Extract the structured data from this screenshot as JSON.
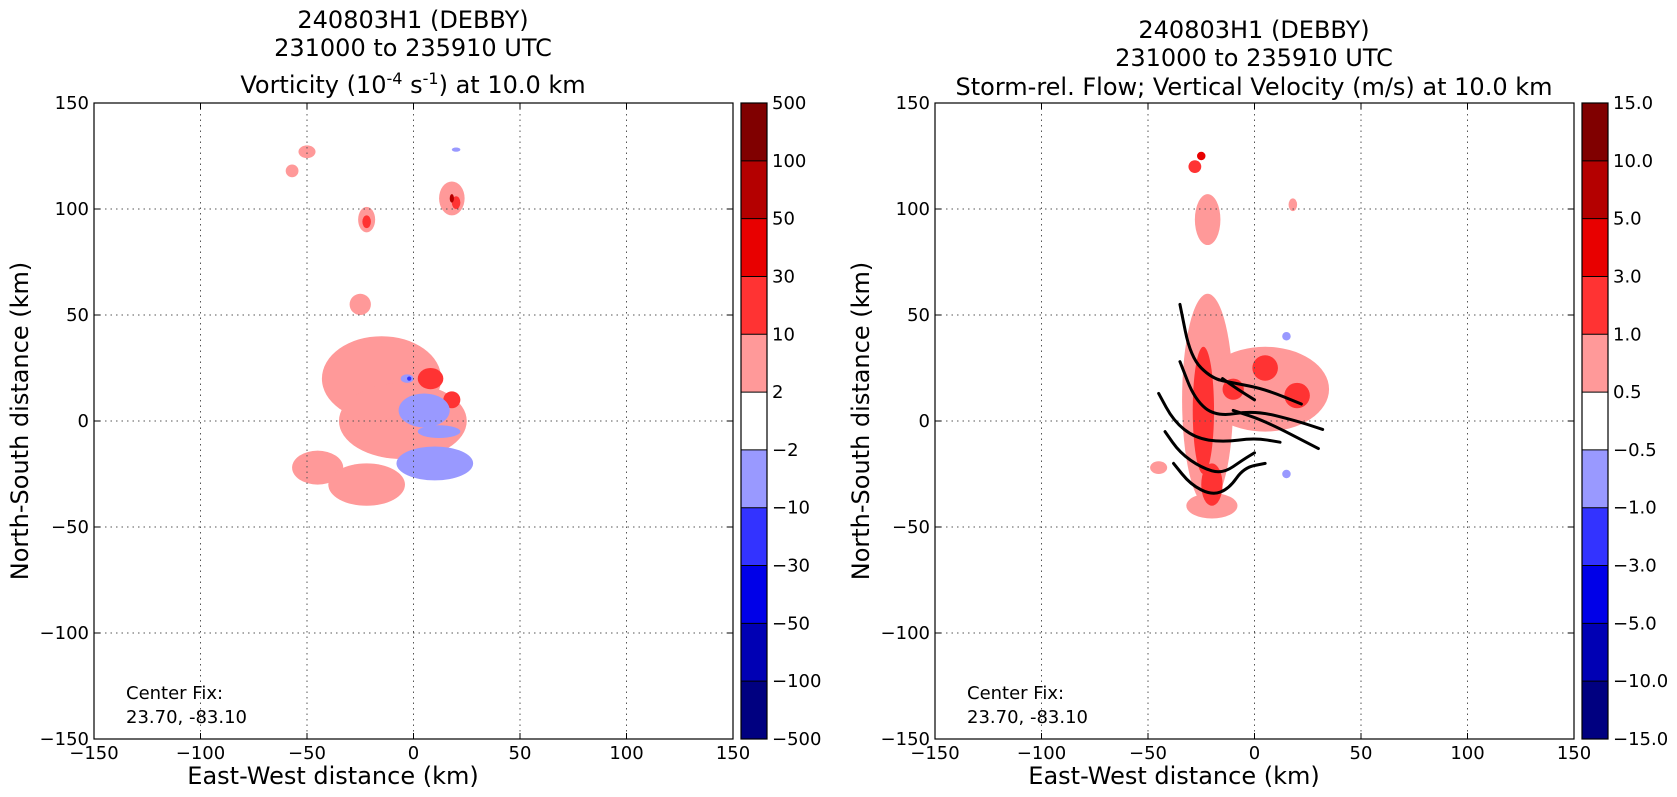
{
  "chart_data": [
    {
      "type": "heatmap",
      "title_lines": [
        "240803H1 (DEBBY)",
        "231000 to 235910 UTC"
      ],
      "title_var_parts": [
        "Vorticity (10",
        "-4",
        " s",
        "-1",
        ") at 10.0 km"
      ],
      "xlabel": "East-West distance (km)",
      "ylabel": "North-South distance (km)",
      "xlim": [
        -150,
        150
      ],
      "ylim": [
        -150,
        150
      ],
      "xticks": [
        -150,
        -100,
        -50,
        0,
        50,
        100,
        150
      ],
      "yticks": [
        -150,
        -100,
        -50,
        0,
        50,
        100,
        150
      ],
      "grid": true,
      "annotation": [
        "Center Fix:",
        "23.70, -83.10"
      ],
      "colorbar": {
        "labels": [
          "500",
          "100",
          "50",
          "30",
          "10",
          "2",
          "−2",
          "−10",
          "−30",
          "−50",
          "−100",
          "−500"
        ],
        "colors": [
          "#800000",
          "#b40000",
          "#e80000",
          "#ff3333",
          "#ff9999",
          "#ffffff",
          "#9999ff",
          "#3333ff",
          "#0000e8",
          "#0000b4",
          "#000080"
        ]
      },
      "blobs": [
        {
          "level": 1,
          "x": -15,
          "y": 20,
          "rx": 28,
          "ry": 20
        },
        {
          "level": 1,
          "x": -5,
          "y": 0,
          "rx": 30,
          "ry": 18
        },
        {
          "level": 1,
          "x": -45,
          "y": -22,
          "rx": 12,
          "ry": 8
        },
        {
          "level": 1,
          "x": -22,
          "y": -30,
          "rx": 18,
          "ry": 10
        },
        {
          "level": 1,
          "x": -25,
          "y": 55,
          "rx": 5,
          "ry": 5
        },
        {
          "level": 1,
          "x": -22,
          "y": 95,
          "rx": 4,
          "ry": 6
        },
        {
          "level": 1,
          "x": 18,
          "y": 105,
          "rx": 6,
          "ry": 8
        },
        {
          "level": 1,
          "x": -57,
          "y": 118,
          "rx": 3,
          "ry": 3
        },
        {
          "level": 1,
          "x": -50,
          "y": 127,
          "rx": 4,
          "ry": 3
        },
        {
          "level": 2,
          "x": 8,
          "y": 20,
          "rx": 6,
          "ry": 5
        },
        {
          "level": 2,
          "x": 18,
          "y": 10,
          "rx": 4,
          "ry": 4
        },
        {
          "level": 2,
          "x": 20,
          "y": 103,
          "rx": 2,
          "ry": 3
        },
        {
          "level": 2,
          "x": -22,
          "y": 94,
          "rx": 2,
          "ry": 3
        },
        {
          "level": 4,
          "x": 18,
          "y": 105,
          "rx": 1,
          "ry": 2
        },
        {
          "level": -1,
          "x": 5,
          "y": 5,
          "rx": 12,
          "ry": 8
        },
        {
          "level": -1,
          "x": 10,
          "y": -20,
          "rx": 18,
          "ry": 8
        },
        {
          "level": -1,
          "x": 12,
          "y": -5,
          "rx": 10,
          "ry": 3
        },
        {
          "level": -1,
          "x": -3,
          "y": 20,
          "rx": 3,
          "ry": 2
        },
        {
          "level": -1,
          "x": 20,
          "y": 128,
          "rx": 2,
          "ry": 1
        },
        {
          "level": -2,
          "x": -2,
          "y": 20,
          "rx": 1,
          "ry": 1
        }
      ]
    },
    {
      "type": "heatmap",
      "title_lines": [
        "240803H1 (DEBBY)",
        "231000 to 235910 UTC"
      ],
      "title_var_parts": [
        "Storm-rel. Flow; Vertical Velocity (m/s) at 10.0 km"
      ],
      "xlabel": "East-West distance (km)",
      "ylabel": "North-South distance (km)",
      "xlim": [
        -150,
        150
      ],
      "ylim": [
        -150,
        150
      ],
      "xticks": [
        -150,
        -100,
        -50,
        0,
        50,
        100,
        150
      ],
      "yticks": [
        -150,
        -100,
        -50,
        0,
        50,
        100,
        150
      ],
      "grid": true,
      "annotation": [
        "Center Fix:",
        "23.70, -83.10"
      ],
      "colorbar": {
        "labels": [
          "15.0",
          "10.0",
          "5.0",
          "3.0",
          "1.0",
          "0.5",
          "−0.5",
          "−1.0",
          "−3.0",
          "−5.0",
          "−10.0",
          "−15.0"
        ],
        "colors": [
          "#800000",
          "#b40000",
          "#e80000",
          "#ff3333",
          "#ff9999",
          "#ffffff",
          "#9999ff",
          "#3333ff",
          "#0000e8",
          "#0000b4",
          "#000080"
        ]
      },
      "blobs": [
        {
          "level": 1,
          "x": -22,
          "y": 10,
          "rx": 12,
          "ry": 50
        },
        {
          "level": 1,
          "x": 5,
          "y": 15,
          "rx": 30,
          "ry": 20
        },
        {
          "level": 1,
          "x": -20,
          "y": -40,
          "rx": 12,
          "ry": 6
        },
        {
          "level": 1,
          "x": -22,
          "y": 95,
          "rx": 6,
          "ry": 12
        },
        {
          "level": 1,
          "x": 18,
          "y": 102,
          "rx": 2,
          "ry": 3
        },
        {
          "level": 1,
          "x": -45,
          "y": -22,
          "rx": 4,
          "ry": 3
        },
        {
          "level": 1,
          "x": -5,
          "y": 15,
          "rx": 3,
          "ry": 3
        },
        {
          "level": 2,
          "x": -24,
          "y": 5,
          "rx": 5,
          "ry": 30
        },
        {
          "level": 2,
          "x": 5,
          "y": 25,
          "rx": 6,
          "ry": 6
        },
        {
          "level": 2,
          "x": 20,
          "y": 12,
          "rx": 6,
          "ry": 6
        },
        {
          "level": 2,
          "x": -10,
          "y": 15,
          "rx": 5,
          "ry": 5
        },
        {
          "level": 2,
          "x": -20,
          "y": -30,
          "rx": 5,
          "ry": 10
        },
        {
          "level": 2,
          "x": -28,
          "y": 120,
          "rx": 3,
          "ry": 3
        },
        {
          "level": 3,
          "x": -25,
          "y": 125,
          "rx": 2,
          "ry": 2
        },
        {
          "level": -1,
          "x": 15,
          "y": -25,
          "rx": 2,
          "ry": 2
        },
        {
          "level": -1,
          "x": 15,
          "y": 40,
          "rx": 2,
          "ry": 2
        }
      ],
      "streamlines": [
        [
          [
            -35,
            55
          ],
          [
            -30,
            30
          ],
          [
            -20,
            20
          ],
          [
            -10,
            18
          ],
          [
            5,
            15
          ],
          [
            22,
            8
          ]
        ],
        [
          [
            -35,
            28
          ],
          [
            -28,
            10
          ],
          [
            -18,
            2
          ],
          [
            0,
            5
          ],
          [
            20,
            0
          ],
          [
            32,
            -4
          ]
        ],
        [
          [
            -45,
            13
          ],
          [
            -38,
            0
          ],
          [
            -28,
            -8
          ],
          [
            -15,
            -10
          ],
          [
            0,
            -8
          ],
          [
            12,
            -10
          ]
        ],
        [
          [
            -42,
            -5
          ],
          [
            -35,
            -15
          ],
          [
            -25,
            -22
          ],
          [
            -15,
            -25
          ],
          [
            -5,
            -18
          ],
          [
            0,
            -15
          ]
        ],
        [
          [
            -38,
            -20
          ],
          [
            -30,
            -30
          ],
          [
            -20,
            -35
          ],
          [
            -12,
            -32
          ],
          [
            -5,
            -22
          ],
          [
            5,
            -20
          ]
        ],
        [
          [
            -15,
            20
          ],
          [
            -8,
            15
          ],
          [
            0,
            10
          ]
        ],
        [
          [
            -10,
            5
          ],
          [
            5,
            0
          ],
          [
            30,
            -13
          ]
        ]
      ]
    }
  ]
}
